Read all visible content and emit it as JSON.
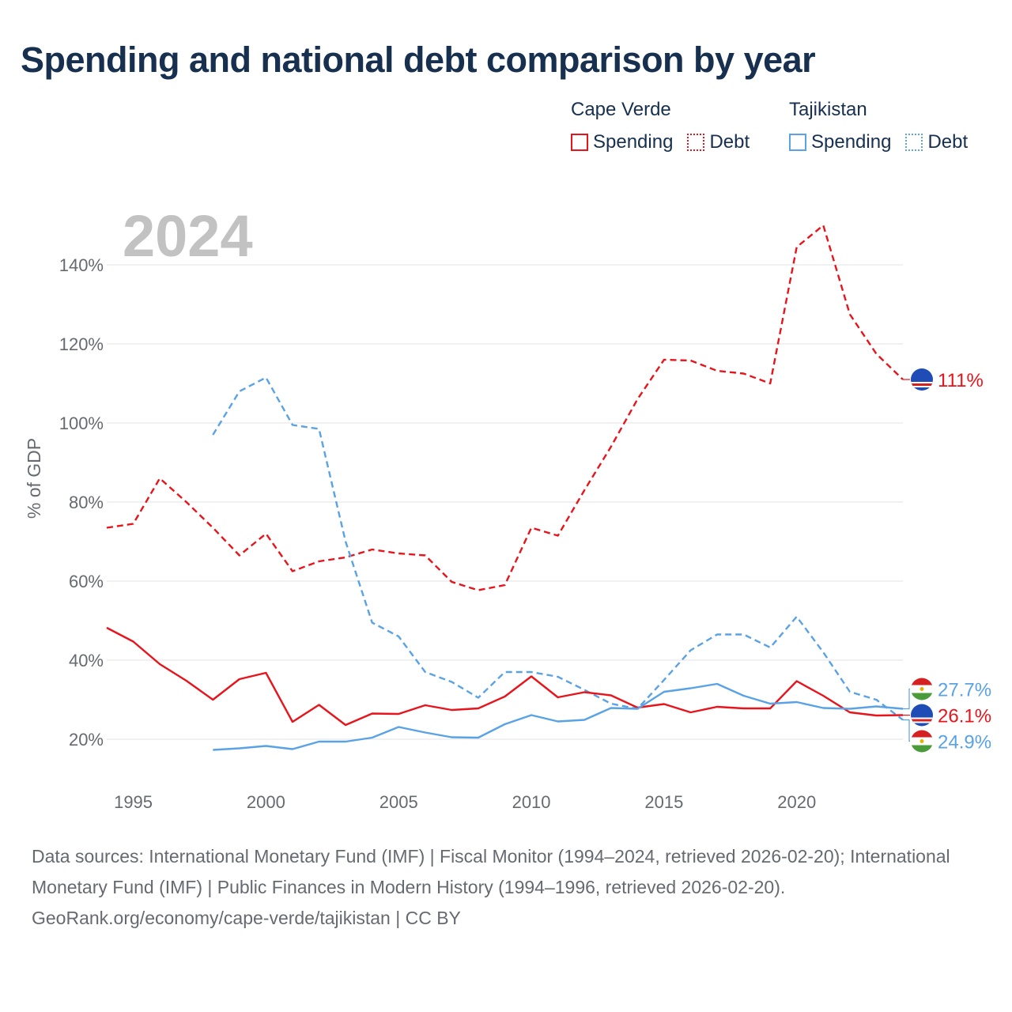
{
  "title": "Spending and national debt comparison by year",
  "legend": [
    {
      "country": "Cape Verde",
      "color": "#e8141c",
      "items": [
        {
          "label": "Spending",
          "style": "solid"
        },
        {
          "label": "Debt",
          "style": "dotted"
        }
      ]
    },
    {
      "country": "Tajikistan",
      "color": "#5aa2e6",
      "items": [
        {
          "label": "Spending",
          "style": "solid"
        },
        {
          "label": "Debt",
          "style": "dotted"
        }
      ]
    }
  ],
  "chart_data": {
    "type": "line",
    "year_label": "2024",
    "ylabel": "% of GDP",
    "xlim": [
      1994,
      2024
    ],
    "ylim": [
      13,
      153
    ],
    "xticks": [
      1995,
      2000,
      2005,
      2010,
      2015,
      2020
    ],
    "x_tick_labels": [
      "1995",
      "2000",
      "2005",
      "2010",
      "2015",
      "2020"
    ],
    "yticks": [
      20,
      40,
      60,
      80,
      100,
      120,
      140
    ],
    "y_tick_labels": [
      "20%",
      "40%",
      "60%",
      "80%",
      "100%",
      "120%",
      "140%"
    ],
    "grid": true,
    "series": [
      {
        "name": "Cape Verde Debt",
        "color": "#e8141c",
        "dash": "dashed",
        "x": [
          1994,
          1995,
          1996,
          1997,
          1998,
          1999,
          2000,
          2001,
          2002,
          2003,
          2004,
          2005,
          2006,
          2007,
          2008,
          2009,
          2010,
          2011,
          2012,
          2013,
          2014,
          2015,
          2016,
          2017,
          2018,
          2019,
          2020,
          2021,
          2022,
          2023,
          2024
        ],
        "y": [
          73.5,
          74.5,
          86,
          80,
          73.5,
          66.5,
          72,
          62.5,
          65,
          66,
          68,
          67,
          66.5,
          59.8,
          57.7,
          59,
          73.5,
          71.5,
          83,
          94,
          106,
          116,
          115.8,
          113.2,
          112.5,
          110,
          144.5,
          150,
          127.5,
          117.5,
          111
        ]
      },
      {
        "name": "Tajikistan Debt",
        "color": "#5aa2e6",
        "dash": "dashed",
        "x": [
          1998,
          1999,
          2000,
          2001,
          2002,
          2003,
          2004,
          2005,
          2006,
          2007,
          2008,
          2009,
          2010,
          2011,
          2012,
          2013,
          2014,
          2015,
          2016,
          2017,
          2018,
          2019,
          2020,
          2021,
          2022,
          2023,
          2024
        ],
        "y": [
          97,
          108,
          111.5,
          99.5,
          98.5,
          70,
          49.5,
          46,
          37,
          34.5,
          30.5,
          37,
          37,
          35.8,
          32.5,
          29,
          27.7,
          35,
          42.5,
          46.5,
          46.5,
          43.2,
          51,
          42,
          32,
          30,
          24.9
        ]
      },
      {
        "name": "Cape Verde Spending",
        "color": "#e8141c",
        "dash": "solid",
        "x": [
          1994,
          1995,
          1996,
          1997,
          1998,
          1999,
          2000,
          2001,
          2002,
          2003,
          2004,
          2005,
          2006,
          2007,
          2008,
          2009,
          2010,
          2011,
          2012,
          2013,
          2014,
          2015,
          2016,
          2017,
          2018,
          2019,
          2020,
          2021,
          2022,
          2023,
          2024
        ],
        "y": [
          48.2,
          44.7,
          39,
          34.8,
          30,
          35.2,
          36.8,
          24.4,
          28.7,
          23.6,
          26.5,
          26.4,
          28.6,
          27.4,
          27.8,
          30.8,
          35.9,
          30.6,
          31.9,
          31.1,
          28,
          28.9,
          26.8,
          28.2,
          27.8,
          27.8,
          34.7,
          31,
          26.8,
          26,
          26.1
        ]
      },
      {
        "name": "Tajikistan Spending",
        "color": "#5aa2e6",
        "dash": "solid",
        "x": [
          1998,
          1999,
          2000,
          2001,
          2002,
          2003,
          2004,
          2005,
          2006,
          2007,
          2008,
          2009,
          2010,
          2011,
          2012,
          2013,
          2014,
          2015,
          2016,
          2017,
          2018,
          2019,
          2020,
          2021,
          2022,
          2023,
          2024
        ],
        "y": [
          17.3,
          17.7,
          18.3,
          17.5,
          19.4,
          19.4,
          20.4,
          23.1,
          21.7,
          20.5,
          20.4,
          23.8,
          26.1,
          24.5,
          24.9,
          27.9,
          27.7,
          32,
          32.9,
          34,
          31,
          29,
          29.4,
          27.9,
          27.7,
          28.3,
          27.7
        ]
      }
    ],
    "end_labels": [
      {
        "text": "111%",
        "value": 111,
        "color": "#e8141c",
        "flag": "cape-verde"
      },
      {
        "text": "27.7%",
        "value": 27.7,
        "color": "#5aa2e6",
        "flag": "tajikistan"
      },
      {
        "text": "26.1%",
        "value": 26.1,
        "color": "#e8141c",
        "flag": "cape-verde"
      },
      {
        "text": "24.9%",
        "value": 24.9,
        "color": "#5aa2e6",
        "flag": "tajikistan"
      }
    ]
  },
  "footer": {
    "sources": "Data sources: International Monetary Fund (IMF) | Fiscal Monitor (1994–2024, retrieved 2026-02-20); International Monetary Fund (IMF) | Public Finances in Modern History (1994–1996, retrieved 2026-02-20).",
    "credit": "GeoRank.org/economy/cape-verde/tajikistan | CC BY"
  }
}
